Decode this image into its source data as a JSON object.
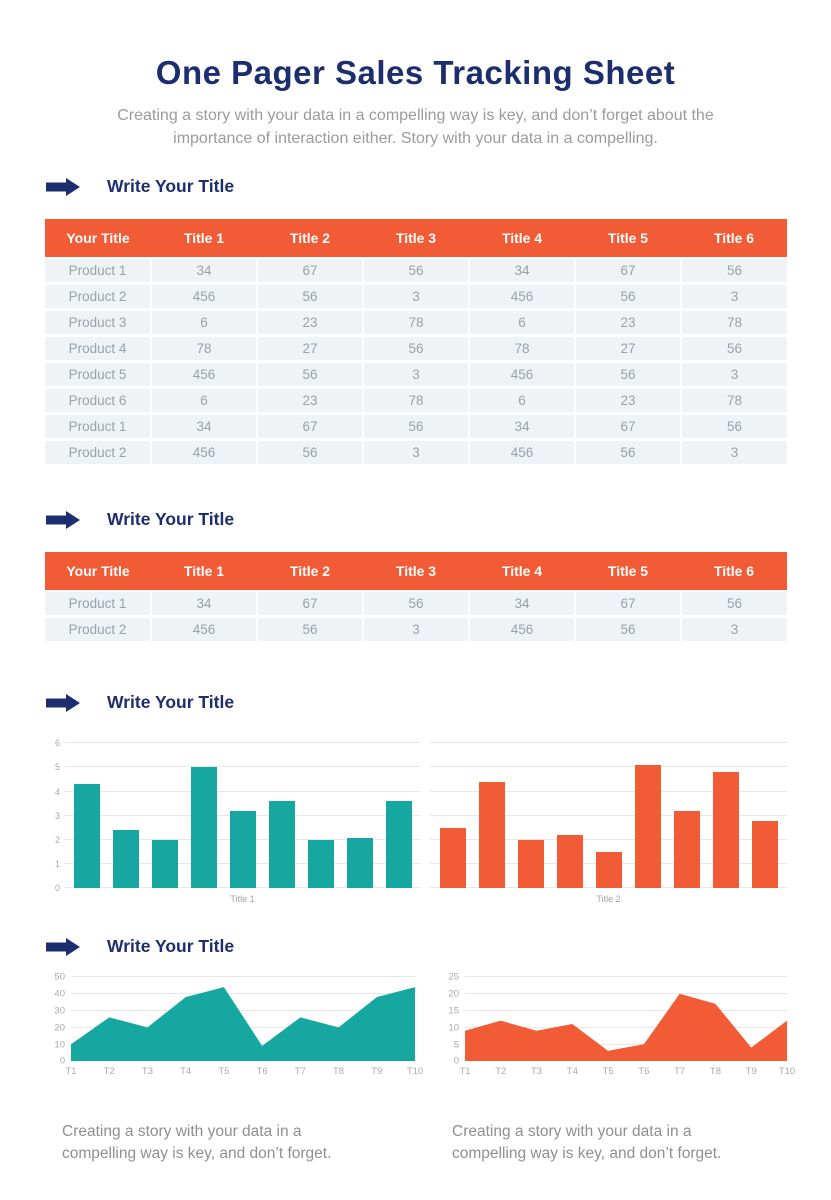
{
  "page": {
    "title": "One Pager Sales Tracking Sheet",
    "subtitle": "Creating a story with your data in a compelling way is key, and don’t forget about the importance of interaction either. Story with your data in a compelling."
  },
  "sections": {
    "s1": {
      "heading": "Write Your Title"
    },
    "s2": {
      "heading": "Write Your Title"
    },
    "s3": {
      "heading": "Write Your Title"
    },
    "s4": {
      "heading": "Write Your Title"
    }
  },
  "tables": {
    "table1": {
      "headers": [
        "Your Title",
        "Title 1",
        "Title 2",
        "Title 3",
        "Title 4",
        "Title 5",
        "Title 6"
      ],
      "rows": [
        [
          "Product 1",
          "34",
          "67",
          "56",
          "34",
          "67",
          "56"
        ],
        [
          "Product 2",
          "456",
          "56",
          "3",
          "456",
          "56",
          "3"
        ],
        [
          "Product 3",
          "6",
          "23",
          "78",
          "6",
          "23",
          "78"
        ],
        [
          "Product 4",
          "78",
          "27",
          "56",
          "78",
          "27",
          "56"
        ],
        [
          "Product 5",
          "456",
          "56",
          "3",
          "456",
          "56",
          "3"
        ],
        [
          "Product 6",
          "6",
          "23",
          "78",
          "6",
          "23",
          "78"
        ],
        [
          "Product 1",
          "34",
          "67",
          "56",
          "34",
          "67",
          "56"
        ],
        [
          "Product 2",
          "456",
          "56",
          "3",
          "456",
          "56",
          "3"
        ]
      ]
    },
    "table2": {
      "headers": [
        "Your Title",
        "Title 1",
        "Title 2",
        "Title 3",
        "Title 4",
        "Title 5",
        "Title 6"
      ],
      "rows": [
        [
          "Product 1",
          "34",
          "67",
          "56",
          "34",
          "67",
          "56"
        ],
        [
          "Product 2",
          "456",
          "56",
          "3",
          "456",
          "56",
          "3"
        ]
      ]
    }
  },
  "chart_data": [
    {
      "type": "bar",
      "xlabel": "Title 1",
      "values": [
        4.3,
        2.4,
        2,
        5,
        3.2,
        3.6,
        2,
        2.1,
        3.6
      ],
      "ylim": [
        0,
        6
      ],
      "yticks": [
        0,
        1,
        2,
        3,
        4,
        5,
        6
      ],
      "grid": true,
      "legend": "none",
      "color": "#16a8a0"
    },
    {
      "type": "bar",
      "xlabel": "Title 2",
      "values": [
        2.5,
        4.4,
        2,
        2.2,
        1.5,
        5.1,
        3.2,
        4.8,
        2.8
      ],
      "ylim": [
        0,
        6
      ],
      "yticks": [],
      "grid": true,
      "legend": "none",
      "note": "shares y scale with first bar chart, no tick labels shown",
      "color": "#f15b35"
    },
    {
      "type": "area",
      "x": [
        "T1",
        "T2",
        "T3",
        "T4",
        "T5",
        "T6",
        "T7",
        "T8",
        "T9",
        "T10"
      ],
      "values": [
        10,
        26,
        20,
        38,
        44,
        9,
        26,
        20,
        38,
        44
      ],
      "ylim": [
        0,
        50
      ],
      "yticks": [
        0,
        10,
        20,
        30,
        40,
        50
      ],
      "grid": true,
      "legend": "none",
      "color": "#16a8a0"
    },
    {
      "type": "area",
      "x": [
        "T1",
        "T2",
        "T3",
        "T4",
        "T5",
        "T6",
        "T7",
        "T8",
        "T9",
        "T10"
      ],
      "values": [
        9,
        12,
        9,
        11,
        3,
        5,
        20,
        17,
        4,
        12
      ],
      "ylim": [
        0,
        25
      ],
      "yticks": [
        0,
        5,
        10,
        15,
        20,
        25
      ],
      "grid": true,
      "legend": "none",
      "color": "#f15b35"
    }
  ],
  "captions": {
    "left": "Creating a story with your data in a compelling way is key, and don’t forget.",
    "right": "Creating a story with your data in a compelling way is key, and don’t forget."
  },
  "colors": {
    "navy": "#1c2e6e",
    "orange": "#f15b35",
    "teal": "#16a8a0",
    "table_row_bg": "#eff3f6",
    "muted_text": "#9b9b9b"
  }
}
